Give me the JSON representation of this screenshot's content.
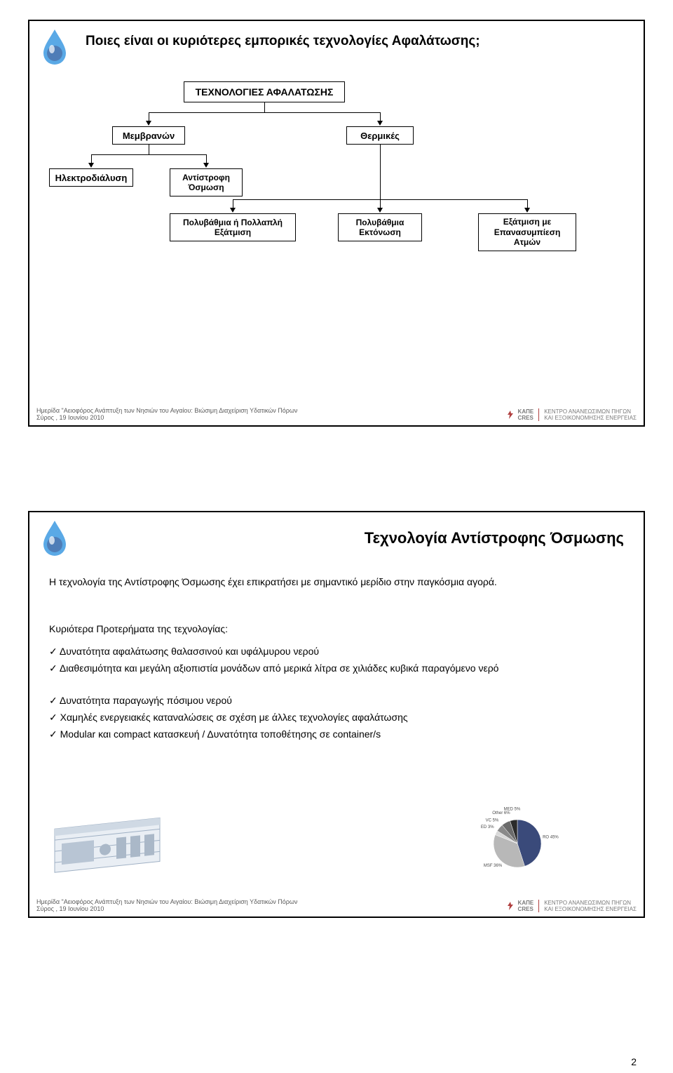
{
  "page_number": "2",
  "footer": {
    "line1": "Ημερίδα \"Αειοφόρος Ανάπτυξη των Νησιών του Αιγαίου: Βιώσιμη Διαχείριση Υδατικών Πόρων",
    "line2": "Σύρος , 19 Ιουνίου 2010",
    "org1": "ΚΑΠΕ",
    "org2": "CRES",
    "org_sub1": "ΚΕΝΤΡΟ ΑΝΑΝΕΩΣΙΜΩΝ ΠΗΓΩΝ",
    "org_sub2": "ΚΑΙ ΕΞΟΙΚΟΝΟΜΗΣΗΣ ΕΝΕΡΓΕΙΑΣ"
  },
  "slide1": {
    "title": "Ποιες είναι οι κυριότερες εμπορικές τεχνολογίες Αφαλάτωσης;",
    "tree": {
      "root": "ΤΕΧΝΟΛΟΓΙΕΣ ΑΦΑΛΑΤΩΣΗΣ",
      "l2a": "Μεμβρανών",
      "l2b": "Θερμικές",
      "l3a": "Ηλεκτροδιάλυση",
      "l3b": "Αντίστροφη Όσμωση",
      "l3c": "Πολυβάθμια ή Πολλαπλή Εξάτμιση",
      "l3d": "Πολυβάθμια Εκτόνωση",
      "l3e": "Εξάτμιση με Επανασυμπίεση Ατμών"
    },
    "tree_style": {
      "box_border": "#000000",
      "box_bg": "#ffffff",
      "font_bold": true
    }
  },
  "slide2": {
    "title": "Τεχνολογία Αντίστροφης Όσμωσης",
    "para": "Η τεχνολογία της Αντίστροφης Όσμωσης έχει επικρατήσει με σημαντικό μερίδιο στην παγκόσμια αγορά.",
    "sub": "Κυριότερα Προτερήματα της τεχνολογίας:",
    "b1": "Δυνατότητα αφαλάτωσης θαλασσινού και υφάλμυρου νερού",
    "b2": "Διαθεσιμότητα και μεγάλη αξιοπιστία μονάδων από μερικά λίτρα σε χιλιάδες κυβικά παραγόμενο νερό",
    "b3": "Δυνατότητα παραγωγής πόσιμου νερού",
    "b4": "Χαμηλές ενεργειακές καταναλώσεις σε σχέση με άλλες τεχνολογίες αφαλάτωσης",
    "b5": "Modular και compact κατασκευή / Δυνατότητα τοποθέτησης σε container/s",
    "pie": {
      "type": "pie",
      "labels": [
        "RO",
        "MSF",
        "ED",
        "VC",
        "Other",
        "MED"
      ],
      "values_pct": [
        45,
        36,
        3,
        5,
        6,
        5
      ],
      "label_texts": [
        "RO 45%",
        "MSF 36%",
        "ED 3%",
        "VC 5%",
        "Other 6%",
        "MED 5%"
      ],
      "colors": [
        "#3a4a7a",
        "#b8b8b8",
        "#d9d9d9",
        "#8a8a8a",
        "#6b6b6b",
        "#2b2b2b"
      ],
      "label_fontsize": 6,
      "label_color": "#4a4a4a"
    }
  },
  "logo_colors": {
    "water": "#5aa9e6",
    "globe": "#4f7db7",
    "highlight": "#ffffff"
  }
}
